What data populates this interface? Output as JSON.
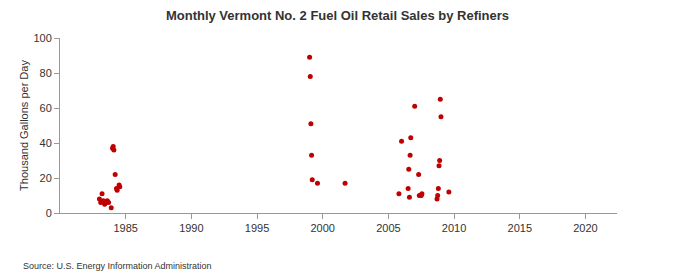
{
  "chart_data": {
    "type": "scatter",
    "title": "Monthly Vermont No. 2 Fuel Oil Retail Sales by Refiners",
    "y_label": "Thousand Gallons per Day",
    "source": "Source: U.S. Energy Information Administration",
    "x": [
      1983.0,
      1983.1,
      1983.2,
      1983.3,
      1983.4,
      1983.5,
      1983.6,
      1983.7,
      1983.9,
      1984.0,
      1984.05,
      1984.1,
      1984.2,
      1984.3,
      1984.35,
      1984.5,
      1984.55,
      1999.0,
      1999.05,
      1999.1,
      1999.15,
      1999.2,
      1999.6,
      2001.7,
      2005.8,
      2006.0,
      2006.5,
      2006.55,
      2006.6,
      2006.65,
      2006.7,
      2007.0,
      2007.3,
      2007.35,
      2007.5,
      2007.55,
      2008.7,
      2008.75,
      2008.8,
      2008.85,
      2008.9,
      2008.95,
      2009.0,
      2009.6
    ],
    "values": [
      8,
      6,
      11,
      7,
      5,
      6,
      7,
      6,
      3,
      37,
      38,
      36,
      22,
      14,
      13,
      16,
      15,
      89,
      78,
      51,
      33,
      19,
      17,
      17,
      11,
      41,
      14,
      25,
      9,
      33,
      43,
      61,
      22,
      10,
      10,
      11,
      8,
      10,
      14,
      27,
      30,
      65,
      55,
      12
    ],
    "color": "#c00000",
    "marker": "circle",
    "xlim": [
      1980,
      2022.4
    ],
    "xticks": [
      1985,
      1990,
      1995,
      2000,
      2005,
      2010,
      2015,
      2020
    ],
    "ylim": [
      0,
      100
    ],
    "yticks": [
      0,
      20,
      40,
      60,
      80,
      100
    ],
    "grid": false
  }
}
